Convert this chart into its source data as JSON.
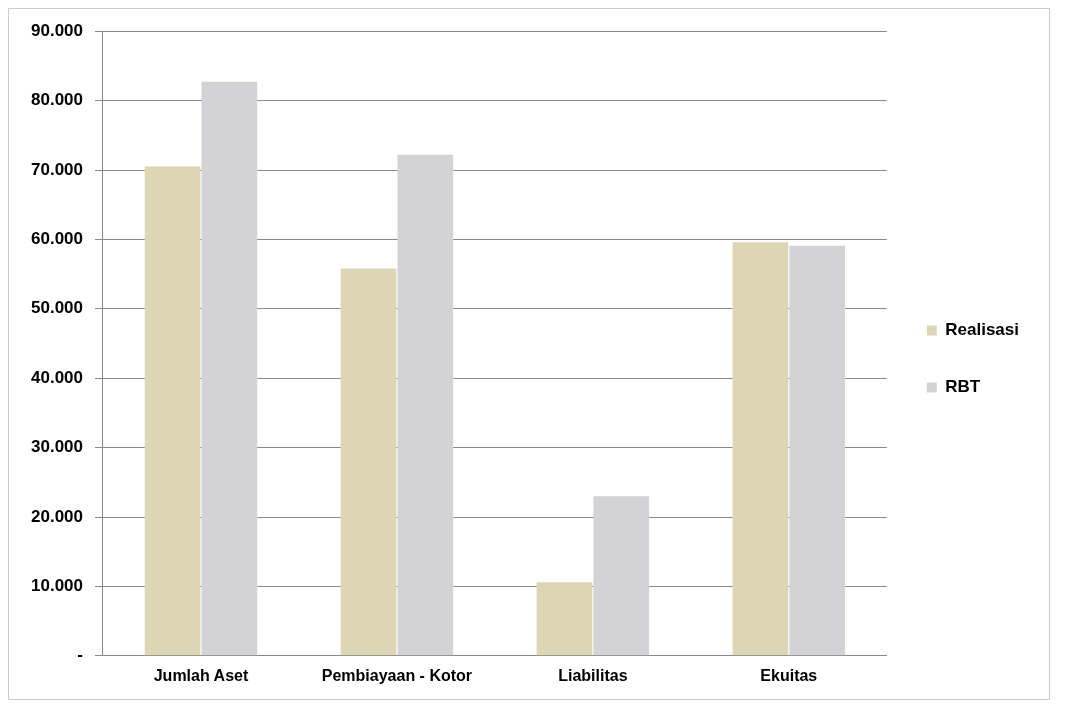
{
  "chart_data": {
    "type": "bar",
    "categories": [
      "Jumlah Aset",
      "Pembiayaan - Kotor",
      "Liabilitas",
      "Ekuitas"
    ],
    "series": [
      {
        "name": "Realisasi",
        "color": "#ddd6b5",
        "values": [
          70500,
          55800,
          10600,
          59600
        ]
      },
      {
        "name": "RBT",
        "color": "#d3d3d6",
        "values": [
          82700,
          72200,
          23000,
          59100
        ]
      }
    ],
    "ylim": [
      0,
      90000
    ],
    "yticks": [
      {
        "value": 0,
        "label": "-"
      },
      {
        "value": 10000,
        "label": "10.000"
      },
      {
        "value": 20000,
        "label": "20.000"
      },
      {
        "value": 30000,
        "label": "30.000"
      },
      {
        "value": 40000,
        "label": "40.000"
      },
      {
        "value": 50000,
        "label": "50.000"
      },
      {
        "value": 60000,
        "label": "60.000"
      },
      {
        "value": 70000,
        "label": "70.000"
      },
      {
        "value": 80000,
        "label": "80.000"
      },
      {
        "value": 90000,
        "label": "90.000"
      }
    ],
    "grid": "y",
    "legend": "right"
  }
}
